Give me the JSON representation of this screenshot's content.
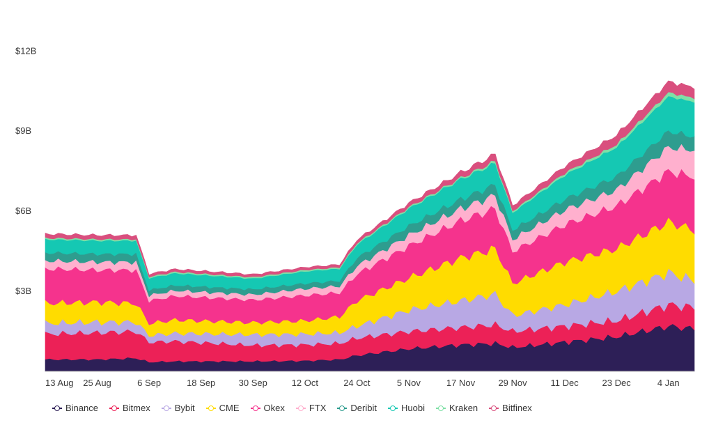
{
  "chart_data": {
    "type": "area",
    "stacked": true,
    "title": "",
    "xlabel": "",
    "ylabel": "",
    "y_ticks": [
      "$3B",
      "$6B",
      "$9B",
      "$12B"
    ],
    "y_tick_values": [
      3,
      6,
      9,
      12
    ],
    "ylim": [
      0,
      13
    ],
    "y_unit": "$B",
    "x_ticks": [
      "13 Aug",
      "25 Aug",
      "6 Sep",
      "18 Sep",
      "30 Sep",
      "12 Oct",
      "24 Oct",
      "5 Nov",
      "17 Nov",
      "29 Nov",
      "11 Dec",
      "23 Dec",
      "4 Jan"
    ],
    "x_tick_days": [
      0,
      12,
      24,
      36,
      48,
      60,
      72,
      84,
      96,
      108,
      120,
      132,
      144
    ],
    "grid": false,
    "legend_position": "bottom",
    "series": [
      {
        "name": "Binance",
        "color": "#2d1f57",
        "anchor_days": [
          0,
          12,
          21,
          24,
          30,
          48,
          60,
          68,
          72,
          84,
          96,
          104,
          108,
          120,
          132,
          144,
          150
        ],
        "anchor_values": [
          0.45,
          0.45,
          0.5,
          0.35,
          0.38,
          0.38,
          0.4,
          0.45,
          0.6,
          0.85,
          1.0,
          1.05,
          0.9,
          1.1,
          1.3,
          1.7,
          1.6
        ]
      },
      {
        "name": "Bitmex",
        "color": "#ec2157",
        "anchor_days": [
          0,
          12,
          21,
          24,
          30,
          48,
          60,
          68,
          72,
          84,
          96,
          104,
          108,
          120,
          132,
          144,
          150
        ],
        "anchor_values": [
          0.95,
          1.0,
          1.0,
          0.75,
          0.75,
          0.6,
          0.6,
          0.6,
          0.65,
          0.65,
          0.65,
          0.7,
          0.6,
          0.6,
          0.6,
          0.8,
          0.8
        ]
      },
      {
        "name": "Bybit",
        "color": "#b8a8e4",
        "anchor_days": [
          0,
          12,
          21,
          24,
          30,
          48,
          60,
          68,
          72,
          84,
          96,
          104,
          108,
          120,
          132,
          144,
          150
        ],
        "anchor_values": [
          0.4,
          0.4,
          0.35,
          0.25,
          0.3,
          0.4,
          0.4,
          0.4,
          0.45,
          0.8,
          1.0,
          1.15,
          0.6,
          0.8,
          1.1,
          1.2,
          1.0
        ]
      },
      {
        "name": "CME",
        "color": "#ffdc00",
        "anchor_days": [
          0,
          12,
          21,
          24,
          30,
          48,
          60,
          68,
          72,
          84,
          96,
          104,
          108,
          120,
          132,
          144,
          150
        ],
        "anchor_values": [
          0.75,
          0.75,
          0.7,
          0.45,
          0.5,
          0.45,
          0.5,
          0.6,
          0.95,
          1.2,
          1.6,
          1.7,
          1.2,
          1.6,
          1.6,
          1.9,
          1.9
        ]
      },
      {
        "name": "Okex",
        "color": "#f5338d",
        "anchor_days": [
          0,
          12,
          21,
          24,
          30,
          48,
          60,
          68,
          72,
          84,
          96,
          104,
          108,
          120,
          132,
          144,
          150
        ],
        "anchor_values": [
          1.3,
          1.2,
          1.25,
          0.85,
          0.9,
          0.85,
          0.95,
          0.9,
          1.0,
          1.2,
          1.4,
          1.5,
          1.2,
          1.4,
          1.6,
          1.9,
          2.0
        ]
      },
      {
        "name": "FTX",
        "color": "#ffb0ce",
        "anchor_days": [
          0,
          12,
          21,
          24,
          30,
          48,
          60,
          68,
          72,
          84,
          96,
          104,
          108,
          120,
          132,
          144,
          150
        ],
        "anchor_values": [
          0.3,
          0.3,
          0.3,
          0.2,
          0.2,
          0.2,
          0.25,
          0.25,
          0.3,
          0.4,
          0.45,
          0.5,
          0.45,
          0.55,
          0.6,
          0.9,
          1.0
        ]
      },
      {
        "name": "Deribit",
        "color": "#2e9d8f",
        "anchor_days": [
          0,
          12,
          21,
          24,
          30,
          48,
          60,
          68,
          72,
          84,
          96,
          104,
          108,
          120,
          132,
          144,
          150
        ],
        "anchor_values": [
          0.3,
          0.3,
          0.3,
          0.2,
          0.2,
          0.2,
          0.2,
          0.2,
          0.3,
          0.35,
          0.35,
          0.4,
          0.35,
          0.4,
          0.5,
          0.6,
          0.5
        ]
      },
      {
        "name": "Huobi",
        "color": "#15c8b3",
        "anchor_days": [
          0,
          12,
          21,
          24,
          30,
          48,
          60,
          68,
          72,
          84,
          96,
          104,
          108,
          120,
          132,
          144,
          150
        ],
        "anchor_values": [
          0.5,
          0.5,
          0.5,
          0.45,
          0.45,
          0.4,
          0.45,
          0.45,
          0.5,
          0.65,
          0.75,
          0.8,
          0.65,
          0.9,
          1.1,
          1.3,
          1.3
        ]
      },
      {
        "name": "Kraken",
        "color": "#7fe0a6",
        "anchor_days": [
          0,
          12,
          21,
          24,
          30,
          48,
          60,
          68,
          72,
          84,
          96,
          104,
          108,
          120,
          132,
          144,
          150
        ],
        "anchor_values": [
          0.05,
          0.05,
          0.05,
          0.05,
          0.05,
          0.05,
          0.05,
          0.05,
          0.05,
          0.05,
          0.05,
          0.08,
          0.06,
          0.08,
          0.1,
          0.15,
          0.15
        ]
      },
      {
        "name": "Bitfinex",
        "color": "#d94f7e",
        "anchor_days": [
          0,
          12,
          21,
          24,
          30,
          48,
          60,
          68,
          72,
          84,
          96,
          104,
          108,
          120,
          132,
          144,
          150
        ],
        "anchor_values": [
          0.15,
          0.15,
          0.15,
          0.1,
          0.1,
          0.1,
          0.1,
          0.1,
          0.12,
          0.15,
          0.2,
          0.25,
          0.2,
          0.25,
          0.35,
          0.4,
          0.4
        ]
      }
    ]
  }
}
